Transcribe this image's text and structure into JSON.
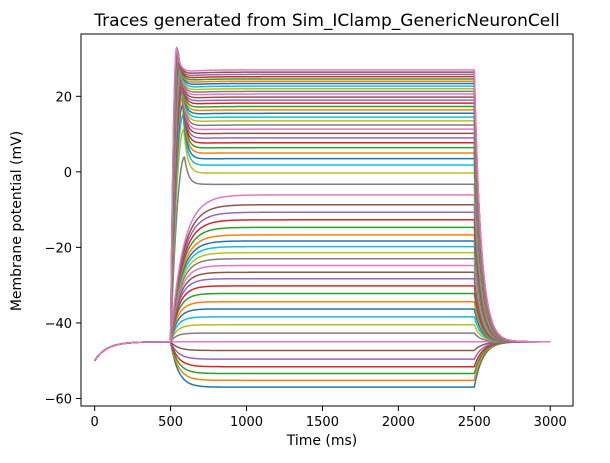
{
  "chart_data": {
    "type": "line",
    "title": "Traces generated from Sim_IClamp_GenericNeuronCell",
    "xlabel": "Time (ms)",
    "ylabel": "Membrane potential (mV)",
    "xlim": [
      -90,
      3150
    ],
    "ylim": [
      -62,
      36.5
    ],
    "xticks": [
      0,
      500,
      1000,
      1500,
      2000,
      2500,
      3000
    ],
    "xtick_labels": [
      "0",
      "500",
      "1000",
      "1500",
      "2000",
      "2500",
      "3000"
    ],
    "yticks": [
      -60,
      -40,
      -20,
      0,
      20
    ],
    "ytick_labels": [
      "−60",
      "−40",
      "−20",
      "0",
      "20"
    ],
    "grid": false,
    "legend": "none",
    "stimulus": {
      "onset_ms": 500,
      "offset_ms": 2500,
      "end_ms": 3000
    },
    "initial_potential_mV": -50,
    "resting_potential_mV": -45,
    "peak_potential_mV": 33,
    "series_steady_state_mV": [
      -57,
      -55.2,
      -53.4,
      -51.6,
      -49.6,
      -47.3,
      -45,
      -42.7,
      -40.5,
      -38.4,
      -36.3,
      -34.4,
      -32.2,
      -30.2,
      -28.3,
      -26.6,
      -24.8,
      -23,
      -21.4,
      -19.8,
      -18.3,
      -16.7,
      -14.7,
      -12.7,
      -10.7,
      -8.7,
      -6.1,
      -3.3,
      -0.3,
      1.8,
      3.5,
      5,
      6.4,
      7.7,
      9,
      10.2,
      11.3,
      12.4,
      13.5,
      14.5,
      15.5,
      16.4,
      17.3,
      18.2,
      19,
      19.8,
      20.6,
      21.3,
      22,
      22.7,
      23.4,
      24,
      24.6,
      25.2,
      25.8,
      26.4,
      27
    ],
    "colors": [
      "#1f77b4",
      "#ff7f0e",
      "#2ca02c",
      "#d62728",
      "#9467bd",
      "#8c564b",
      "#e377c2",
      "#7f7f7f",
      "#bcbd22",
      "#17becf"
    ]
  }
}
